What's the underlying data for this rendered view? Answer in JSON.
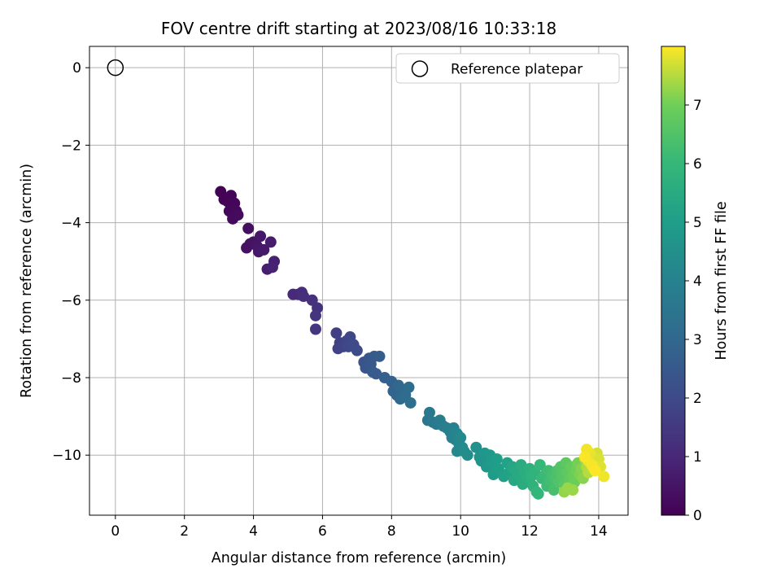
{
  "chart_data": {
    "type": "scatter",
    "title": "FOV centre drift starting at 2023/08/16 10:33:18",
    "xlabel": "Angular distance from reference (arcmin)",
    "ylabel": "Rotation from reference (arcmin)",
    "xlim": [
      -0.75,
      14.85
    ],
    "ylim": [
      -11.55,
      0.55
    ],
    "xticks": [
      0,
      2,
      4,
      6,
      8,
      10,
      12,
      14
    ],
    "yticks": [
      0,
      -2,
      -4,
      -6,
      -8,
      -10
    ],
    "xtick_labels": [
      "0",
      "2",
      "4",
      "6",
      "8",
      "10",
      "12",
      "14"
    ],
    "ytick_labels": [
      "0",
      "−2",
      "−4",
      "−6",
      "−8",
      "−10"
    ],
    "grid": true,
    "colormap": "viridis",
    "colorbar": {
      "label": "Hours from first FF file",
      "range": [
        0,
        8
      ],
      "ticks": [
        0,
        1,
        2,
        3,
        4,
        5,
        6,
        7
      ],
      "tick_labels": [
        "0",
        "1",
        "2",
        "3",
        "4",
        "5",
        "6",
        "7"
      ]
    },
    "reference_point": {
      "name": "Reference platepar",
      "x": 0,
      "y": 0
    },
    "legend": {
      "placement": "top-right",
      "entries": [
        "Reference platepar"
      ]
    },
    "points": [
      [
        3.05,
        -3.2,
        0.02
      ],
      [
        3.15,
        -3.4,
        0.05
      ],
      [
        3.25,
        -3.45,
        0.08
      ],
      [
        3.35,
        -3.3,
        0.1
      ],
      [
        3.45,
        -3.5,
        0.12
      ],
      [
        3.3,
        -3.7,
        0.15
      ],
      [
        3.4,
        -3.8,
        0.18
      ],
      [
        3.5,
        -3.7,
        0.2
      ],
      [
        3.4,
        -3.9,
        0.22
      ],
      [
        3.55,
        -3.8,
        0.25
      ],
      [
        3.85,
        -4.15,
        0.35
      ],
      [
        3.9,
        -4.55,
        0.4
      ],
      [
        3.8,
        -4.65,
        0.42
      ],
      [
        4.0,
        -4.5,
        0.45
      ],
      [
        4.1,
        -4.6,
        0.5
      ],
      [
        4.2,
        -4.35,
        0.55
      ],
      [
        4.15,
        -4.75,
        0.58
      ],
      [
        4.3,
        -4.7,
        0.62
      ],
      [
        4.5,
        -4.5,
        0.7
      ],
      [
        4.4,
        -5.2,
        0.75
      ],
      [
        4.6,
        -5.0,
        0.8
      ],
      [
        4.55,
        -5.15,
        0.85
      ],
      [
        5.15,
        -5.85,
        1.05
      ],
      [
        5.3,
        -5.85,
        1.1
      ],
      [
        5.4,
        -5.8,
        1.15
      ],
      [
        5.45,
        -5.9,
        1.2
      ],
      [
        5.7,
        -6.0,
        1.25
      ],
      [
        5.85,
        -6.2,
        1.3
      ],
      [
        5.8,
        -6.4,
        1.35
      ],
      [
        5.8,
        -6.75,
        1.4
      ],
      [
        6.4,
        -6.85,
        1.65
      ],
      [
        6.5,
        -7.1,
        1.7
      ],
      [
        6.45,
        -7.25,
        1.75
      ],
      [
        6.6,
        -7.2,
        1.8
      ],
      [
        6.7,
        -7.05,
        1.85
      ],
      [
        6.8,
        -6.95,
        1.9
      ],
      [
        6.75,
        -7.2,
        1.95
      ],
      [
        6.9,
        -7.15,
        2.0
      ],
      [
        7.0,
        -7.3,
        2.05
      ],
      [
        7.2,
        -7.6,
        2.3
      ],
      [
        7.25,
        -7.75,
        2.35
      ],
      [
        7.35,
        -7.5,
        2.4
      ],
      [
        7.4,
        -7.65,
        2.45
      ],
      [
        7.45,
        -7.85,
        2.5
      ],
      [
        7.5,
        -7.45,
        2.5
      ],
      [
        7.55,
        -7.9,
        2.55
      ],
      [
        7.65,
        -7.45,
        2.6
      ],
      [
        7.8,
        -8.0,
        2.7
      ],
      [
        8.0,
        -8.1,
        2.8
      ],
      [
        8.05,
        -8.35,
        2.85
      ],
      [
        8.15,
        -8.45,
        2.9
      ],
      [
        8.2,
        -8.2,
        2.95
      ],
      [
        8.25,
        -8.55,
        3.0
      ],
      [
        8.3,
        -8.4,
        3.05
      ],
      [
        8.35,
        -8.5,
        3.1
      ],
      [
        8.4,
        -8.45,
        3.15
      ],
      [
        8.5,
        -8.25,
        3.2
      ],
      [
        8.55,
        -8.65,
        3.25
      ],
      [
        9.05,
        -9.1,
        3.55
      ],
      [
        9.1,
        -8.9,
        3.6
      ],
      [
        9.2,
        -9.15,
        3.65
      ],
      [
        9.3,
        -9.2,
        3.7
      ],
      [
        9.4,
        -9.1,
        3.75
      ],
      [
        9.5,
        -9.25,
        3.8
      ],
      [
        9.6,
        -9.3,
        3.85
      ],
      [
        9.7,
        -9.4,
        3.9
      ],
      [
        9.75,
        -9.55,
        3.95
      ],
      [
        9.8,
        -9.3,
        4.0
      ],
      [
        9.85,
        -9.6,
        4.05
      ],
      [
        9.9,
        -9.45,
        4.1
      ],
      [
        9.95,
        -9.7,
        4.15
      ],
      [
        10.0,
        -9.55,
        4.2
      ],
      [
        9.9,
        -9.9,
        4.25
      ],
      [
        10.05,
        -9.8,
        4.3
      ],
      [
        10.1,
        -9.9,
        4.35
      ],
      [
        10.2,
        -10.0,
        4.4
      ],
      [
        10.45,
        -9.8,
        4.55
      ],
      [
        10.55,
        -10.05,
        4.6
      ],
      [
        10.6,
        -10.15,
        4.65
      ],
      [
        10.7,
        -9.95,
        4.7
      ],
      [
        10.75,
        -10.3,
        4.75
      ],
      [
        10.85,
        -10.0,
        4.8
      ],
      [
        10.9,
        -10.2,
        4.85
      ],
      [
        10.95,
        -10.5,
        4.9
      ],
      [
        11.0,
        -10.4,
        4.95
      ],
      [
        11.05,
        -10.1,
        5.0
      ],
      [
        11.1,
        -10.35,
        5.05
      ],
      [
        11.25,
        -10.55,
        5.1
      ],
      [
        11.35,
        -10.2,
        5.15
      ],
      [
        11.4,
        -10.45,
        5.2
      ],
      [
        11.5,
        -10.3,
        5.3
      ],
      [
        11.55,
        -10.65,
        5.35
      ],
      [
        11.6,
        -10.4,
        5.4
      ],
      [
        11.7,
        -10.55,
        5.45
      ],
      [
        11.75,
        -10.25,
        5.5
      ],
      [
        11.8,
        -10.75,
        5.55
      ],
      [
        11.85,
        -10.45,
        5.6
      ],
      [
        11.95,
        -10.6,
        5.65
      ],
      [
        12.0,
        -10.35,
        5.7
      ],
      [
        12.05,
        -10.55,
        5.75
      ],
      [
        12.1,
        -10.8,
        5.8
      ],
      [
        12.15,
        -10.45,
        5.85
      ],
      [
        12.2,
        -10.95,
        5.9
      ],
      [
        12.25,
        -11.0,
        5.95
      ],
      [
        12.3,
        -10.25,
        6.0
      ],
      [
        12.35,
        -10.6,
        6.05
      ],
      [
        12.45,
        -10.5,
        6.1
      ],
      [
        12.5,
        -10.8,
        6.15
      ],
      [
        12.55,
        -10.4,
        6.2
      ],
      [
        12.6,
        -10.65,
        6.25
      ],
      [
        12.65,
        -10.5,
        6.3
      ],
      [
        12.7,
        -10.9,
        6.35
      ],
      [
        12.75,
        -10.6,
        6.4
      ],
      [
        12.8,
        -10.4,
        6.45
      ],
      [
        12.85,
        -10.7,
        6.5
      ],
      [
        12.9,
        -10.3,
        6.55
      ],
      [
        12.95,
        -10.5,
        6.6
      ],
      [
        13.0,
        -10.75,
        6.65
      ],
      [
        13.05,
        -10.2,
        6.7
      ],
      [
        13.1,
        -10.45,
        6.75
      ],
      [
        13.15,
        -10.65,
        6.8
      ],
      [
        13.2,
        -10.3,
        6.85
      ],
      [
        13.25,
        -10.55,
        6.9
      ],
      [
        13.3,
        -10.7,
        6.95
      ],
      [
        13.35,
        -10.4,
        7.0
      ],
      [
        13.4,
        -10.2,
        7.05
      ],
      [
        13.45,
        -10.5,
        7.1
      ],
      [
        13.5,
        -10.35,
        7.15
      ],
      [
        13.55,
        -10.6,
        7.2
      ],
      [
        13.0,
        -10.95,
        7.25
      ],
      [
        13.1,
        -10.85,
        7.3
      ],
      [
        13.25,
        -10.9,
        7.3
      ],
      [
        13.6,
        -10.1,
        7.4
      ],
      [
        13.65,
        -10.3,
        7.45
      ],
      [
        13.7,
        -10.45,
        7.5
      ],
      [
        13.75,
        -10.2,
        7.55
      ],
      [
        13.8,
        -10.0,
        7.6
      ],
      [
        13.9,
        -10.15,
        7.65
      ],
      [
        13.95,
        -9.95,
        7.7
      ],
      [
        14.0,
        -10.1,
        7.75
      ],
      [
        14.05,
        -10.3,
        7.78
      ],
      [
        13.85,
        -10.35,
        7.8
      ],
      [
        13.75,
        -9.95,
        7.85
      ],
      [
        13.7,
        -10.15,
        7.88
      ],
      [
        14.15,
        -10.55,
        7.9
      ],
      [
        13.65,
        -9.85,
        7.92
      ],
      [
        13.8,
        -10.25,
        7.95
      ],
      [
        13.6,
        -10.05,
        7.97
      ],
      [
        13.9,
        -10.4,
        7.99
      ]
    ]
  }
}
